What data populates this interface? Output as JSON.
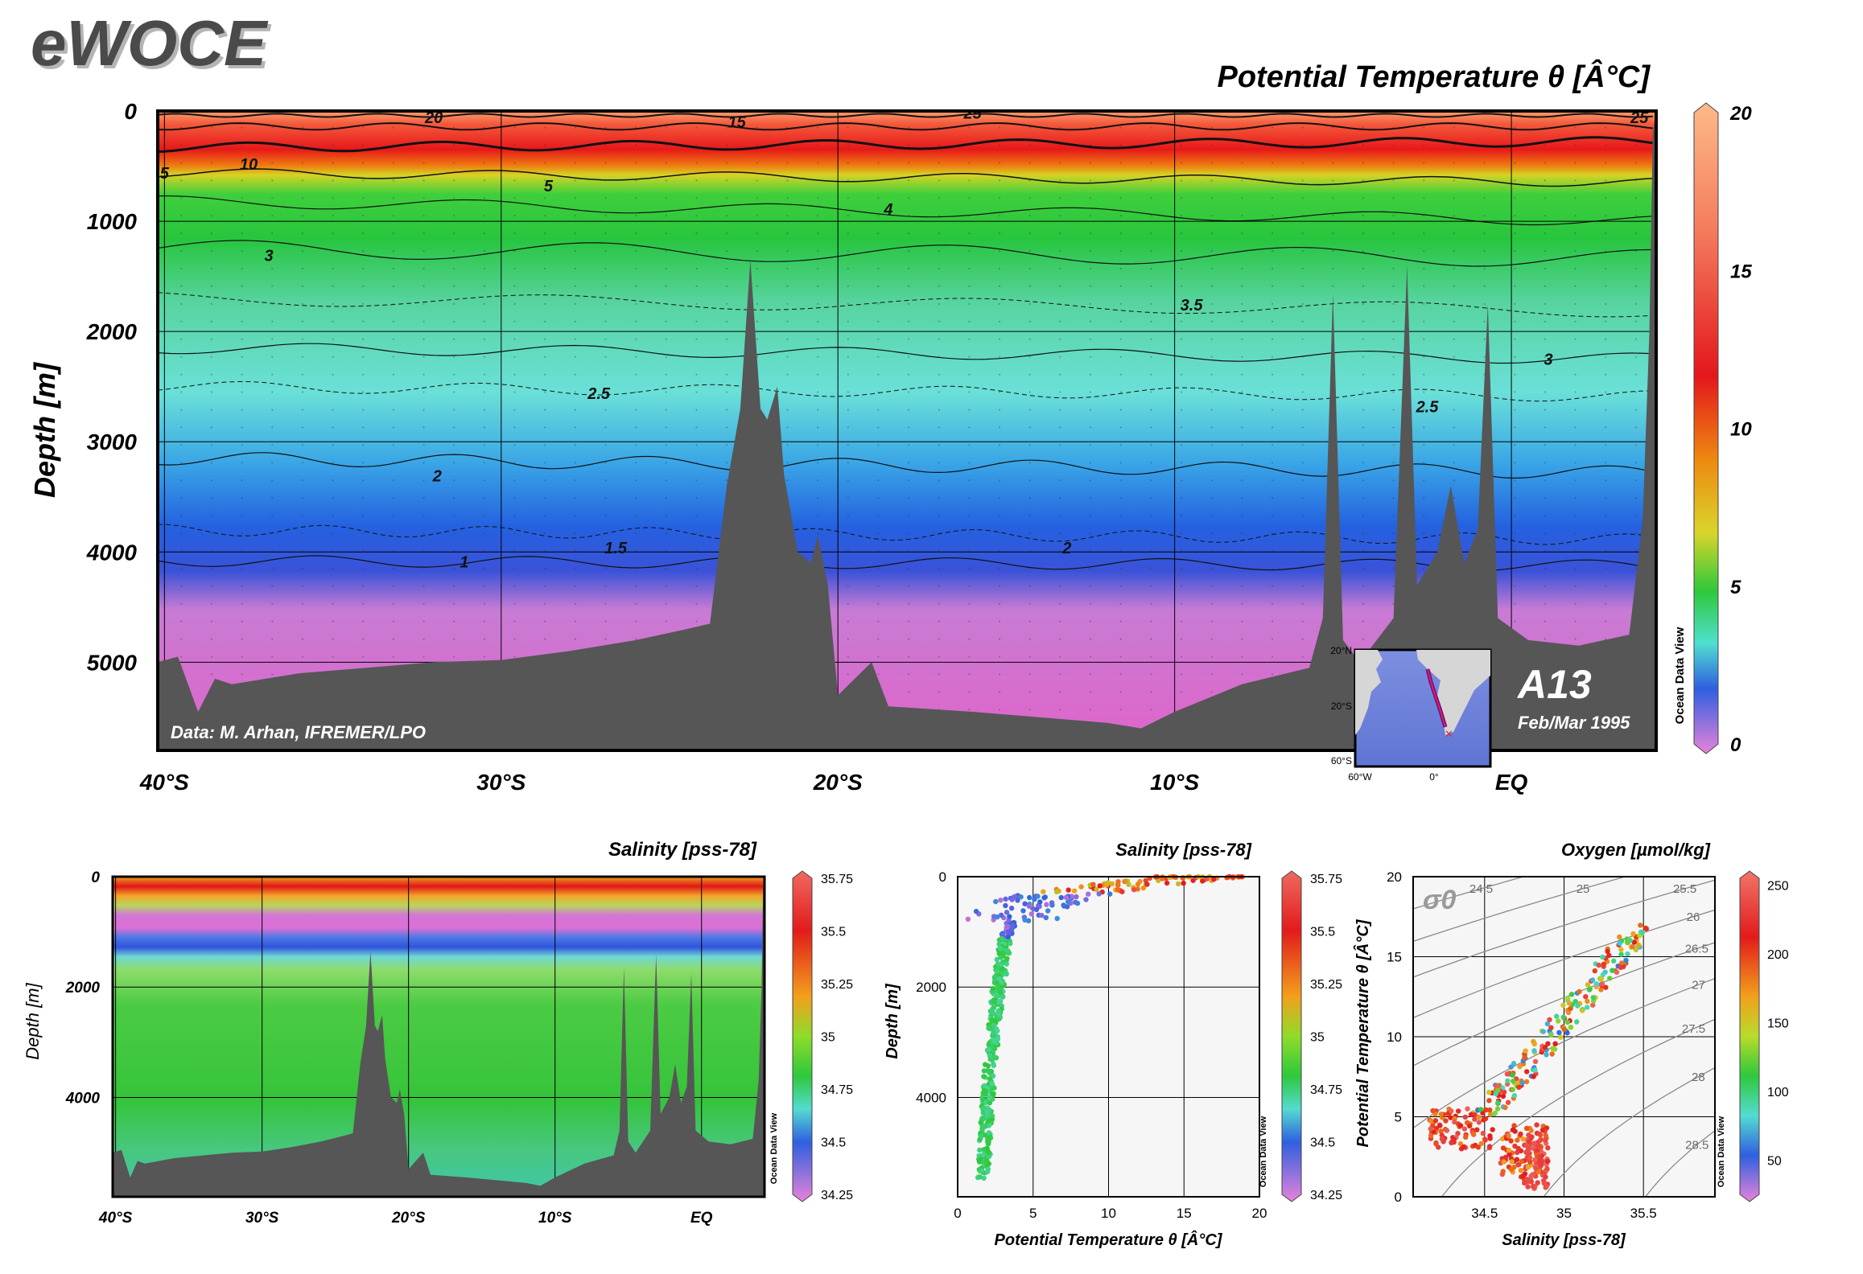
{
  "header": {
    "logo": "eWOCE"
  },
  "chart_data": [
    {
      "id": "main",
      "type": "heatmap",
      "title": "Potential Temperature θ [Â°C]",
      "ylabel": "Depth [m]",
      "xlabel": "",
      "x_ticks": [
        {
          "v": -40,
          "label": "40°S"
        },
        {
          "v": -30,
          "label": "30°S"
        },
        {
          "v": -20,
          "label": "20°S"
        },
        {
          "v": -10,
          "label": "10°S"
        },
        {
          "v": 0,
          "label": "EQ"
        }
      ],
      "xlim": [
        -40.2,
        4.3
      ],
      "y_ticks": [
        {
          "v": 0,
          "label": "0"
        },
        {
          "v": 1000,
          "label": "1000"
        },
        {
          "v": 2000,
          "label": "2000"
        },
        {
          "v": 3000,
          "label": "3000"
        },
        {
          "v": 4000,
          "label": "4000"
        },
        {
          "v": 5000,
          "label": "5000"
        }
      ],
      "ylim": [
        0,
        5800
      ],
      "colorbar": {
        "ticks": [
          "20",
          "15",
          "10",
          "5",
          "0"
        ],
        "range": [
          0,
          20
        ],
        "watermark": "Ocean Data View"
      },
      "annotation": "Data: M. Arhan, IFREMER/LPO",
      "section_label": "A13",
      "date_label": "Feb/Mar 1995",
      "contours": [
        {
          "label": "20",
          "lat": -32,
          "depth": 60
        },
        {
          "label": "15",
          "lat": -23,
          "depth": 100
        },
        {
          "label": "25",
          "lat": -16,
          "depth": 20
        },
        {
          "label": "25",
          "lat": 3.8,
          "depth": 60
        },
        {
          "label": "10",
          "lat": -37.5,
          "depth": 480
        },
        {
          "label": "5",
          "lat": -28.6,
          "depth": 680
        },
        {
          "label": "5",
          "lat": -40,
          "depth": 560
        },
        {
          "label": "4",
          "lat": -18.5,
          "depth": 890
        },
        {
          "label": "3",
          "lat": -36.9,
          "depth": 1310
        },
        {
          "label": "3.5",
          "lat": -9.5,
          "depth": 1760
        },
        {
          "label": "3",
          "lat": 1.1,
          "depth": 2250
        },
        {
          "label": "2.5",
          "lat": -27.1,
          "depth": 2560
        },
        {
          "label": "2.5",
          "lat": -2.5,
          "depth": 2680
        },
        {
          "label": "2",
          "lat": -31.9,
          "depth": 3310
        },
        {
          "label": "1.5",
          "lat": -26.6,
          "depth": 3960
        },
        {
          "label": "2",
          "lat": -13.2,
          "depth": 3960
        },
        {
          "label": "1",
          "lat": -31.1,
          "depth": 4090
        }
      ],
      "inset_map": {
        "lat_labels": [
          "20°N",
          "20°S",
          "60°S"
        ],
        "lon_labels": [
          "60°W",
          "0°"
        ]
      }
    },
    {
      "id": "salinity_section",
      "type": "heatmap",
      "title": "Salinity [pss-78]",
      "ylabel": "Depth [m]",
      "x_ticks": [
        {
          "v": -40,
          "label": "40°S"
        },
        {
          "v": -30,
          "label": "30°S"
        },
        {
          "v": -20,
          "label": "20°S"
        },
        {
          "v": -10,
          "label": "10°S"
        },
        {
          "v": 0,
          "label": "EQ"
        }
      ],
      "xlim": [
        -40.2,
        4.3
      ],
      "y_ticks": [
        {
          "v": 0,
          "label": "0"
        },
        {
          "v": 2000,
          "label": "2000"
        },
        {
          "v": 4000,
          "label": "4000"
        }
      ],
      "ylim": [
        0,
        5800
      ],
      "colorbar": {
        "ticks": [
          "35.75",
          "35.5",
          "35.25",
          "35",
          "34.75",
          "34.5",
          "34.25"
        ],
        "range": [
          34.25,
          35.75
        ],
        "watermark": "Ocean Data View"
      }
    },
    {
      "id": "theta_depth",
      "type": "scatter",
      "title": "Salinity [pss-78]",
      "xlabel": "Potential Temperature θ [Â°C]",
      "ylabel": "Depth [m]",
      "xlim": [
        0,
        20
      ],
      "ylim": [
        0,
        5800
      ],
      "x_ticks": [
        {
          "v": 0,
          "label": "0"
        },
        {
          "v": 5,
          "label": "5"
        },
        {
          "v": 10,
          "label": "10"
        },
        {
          "v": 15,
          "label": "15"
        },
        {
          "v": 20,
          "label": "20"
        }
      ],
      "y_ticks": [
        {
          "v": 0,
          "label": "0"
        },
        {
          "v": 2000,
          "label": "2000"
        },
        {
          "v": 4000,
          "label": "4000"
        }
      ],
      "colorbar": {
        "ticks": [
          "35.75",
          "35.5",
          "35.25",
          "35",
          "34.75",
          "34.5",
          "34.25"
        ],
        "range": [
          34.25,
          35.75
        ],
        "watermark": "Ocean Data View"
      },
      "profile_depth": [
        0,
        100,
        200,
        300,
        400,
        500,
        600,
        700,
        800,
        900,
        1000,
        1200,
        1500,
        2000,
        2500,
        3000,
        3500,
        4000,
        4500,
        5000,
        5500
      ],
      "profile_theta": [
        16,
        13,
        10,
        7.5,
        6,
        5,
        4.3,
        3.8,
        3.6,
        3.4,
        3.3,
        3.1,
        3.0,
        2.7,
        2.5,
        2.3,
        2.1,
        2.0,
        1.9,
        1.8,
        1.7
      ]
    },
    {
      "id": "ts_diagram",
      "type": "scatter",
      "title": "Oxygen [µmol/kg]",
      "xlabel": "Salinity [pss-78]",
      "ylabel": "Potential Temperature θ [Â°C]",
      "xlim": [
        34.05,
        35.95
      ],
      "ylim": [
        0,
        20
      ],
      "x_ticks": [
        {
          "v": 34.5,
          "label": "34.5"
        },
        {
          "v": 35,
          "label": "35"
        },
        {
          "v": 35.5,
          "label": "35.5"
        }
      ],
      "y_ticks": [
        {
          "v": 0,
          "label": "0"
        },
        {
          "v": 5,
          "label": "5"
        },
        {
          "v": 10,
          "label": "10"
        },
        {
          "v": 15,
          "label": "15"
        },
        {
          "v": 20,
          "label": "20"
        }
      ],
      "sigma_label": "σ0",
      "isopycnal_labels": [
        "24.5",
        "25",
        "25.5",
        "26",
        "26.5",
        "27",
        "27.5",
        "28",
        "28.5"
      ],
      "colorbar": {
        "ticks": [
          "250",
          "200",
          "150",
          "100",
          "50"
        ],
        "range": [
          25,
          255
        ],
        "watermark": "Ocean Data View"
      }
    }
  ]
}
